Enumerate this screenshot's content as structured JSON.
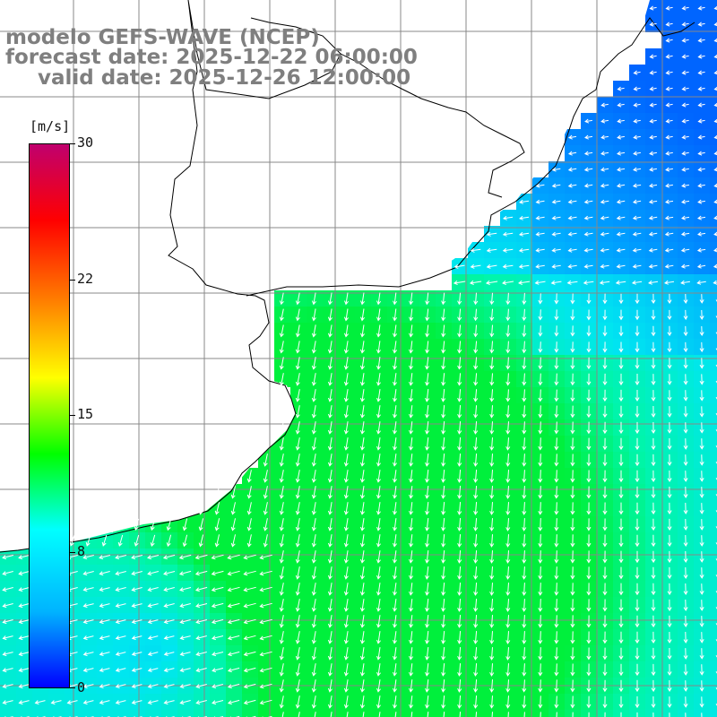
{
  "header": {
    "model": "modelo GEFS-WAVE (NCEP)",
    "forecast": "forecast date: 2025-12-22 06:00:00",
    "valid": "valid date: 2025-12-26 12:00:00"
  },
  "colorbar": {
    "unit": "[m/s]",
    "ticks": [
      "30",
      "22",
      "15",
      "8",
      "0"
    ],
    "tick_values": [
      30,
      22,
      15,
      8,
      0
    ],
    "min": 0,
    "max": 30,
    "colors": [
      "#0000ff",
      "#00b4ff",
      "#00ffff",
      "#00ff00",
      "#ffff00",
      "#ff8000",
      "#ff0000",
      "#c0006e"
    ]
  },
  "map": {
    "variable": "wind speed and direction",
    "land_color": "#ffffff",
    "coast_color": "#000000",
    "grid_color": "#888888"
  }
}
